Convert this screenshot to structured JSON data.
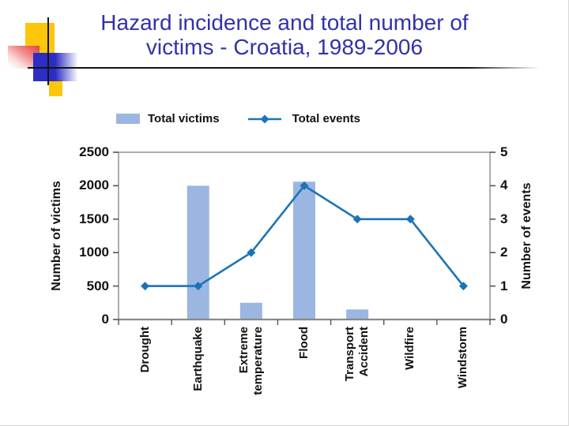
{
  "slide": {
    "title_line1": "Hazard incidence and total number of",
    "title_line2": "victims - Croatia, 1989-2006",
    "title_color": "#3232A8"
  },
  "chart_data": {
    "type": "bar+line combo",
    "categories": [
      "Drought",
      "Earthquake",
      "Extreme temperature",
      "Flood",
      "Transport Accident",
      "Wildfire",
      "Windstorm"
    ],
    "series": [
      {
        "name": "Total victims",
        "type": "bar",
        "axis": "left",
        "color": "#9CB6E2",
        "values": [
          0,
          2000,
          250,
          2060,
          150,
          0,
          0
        ]
      },
      {
        "name": "Total events",
        "type": "line",
        "axis": "right",
        "color": "#1B74B8",
        "values": [
          1,
          1,
          2,
          4,
          3,
          3,
          1
        ]
      }
    ],
    "left_axis": {
      "label": "Number of victims",
      "min": 0,
      "max": 2500,
      "step": 500,
      "ticks": [
        "0",
        "500",
        "1000",
        "1500",
        "2000",
        "2500"
      ]
    },
    "right_axis": {
      "label": "Number of events",
      "min": 0,
      "max": 5,
      "step": 1,
      "ticks": [
        "0",
        "1",
        "2",
        "3",
        "4",
        "5"
      ]
    },
    "grid": false,
    "legend_position": "top",
    "axis_color": "#8A8A8A",
    "tick_color": "#555555"
  }
}
